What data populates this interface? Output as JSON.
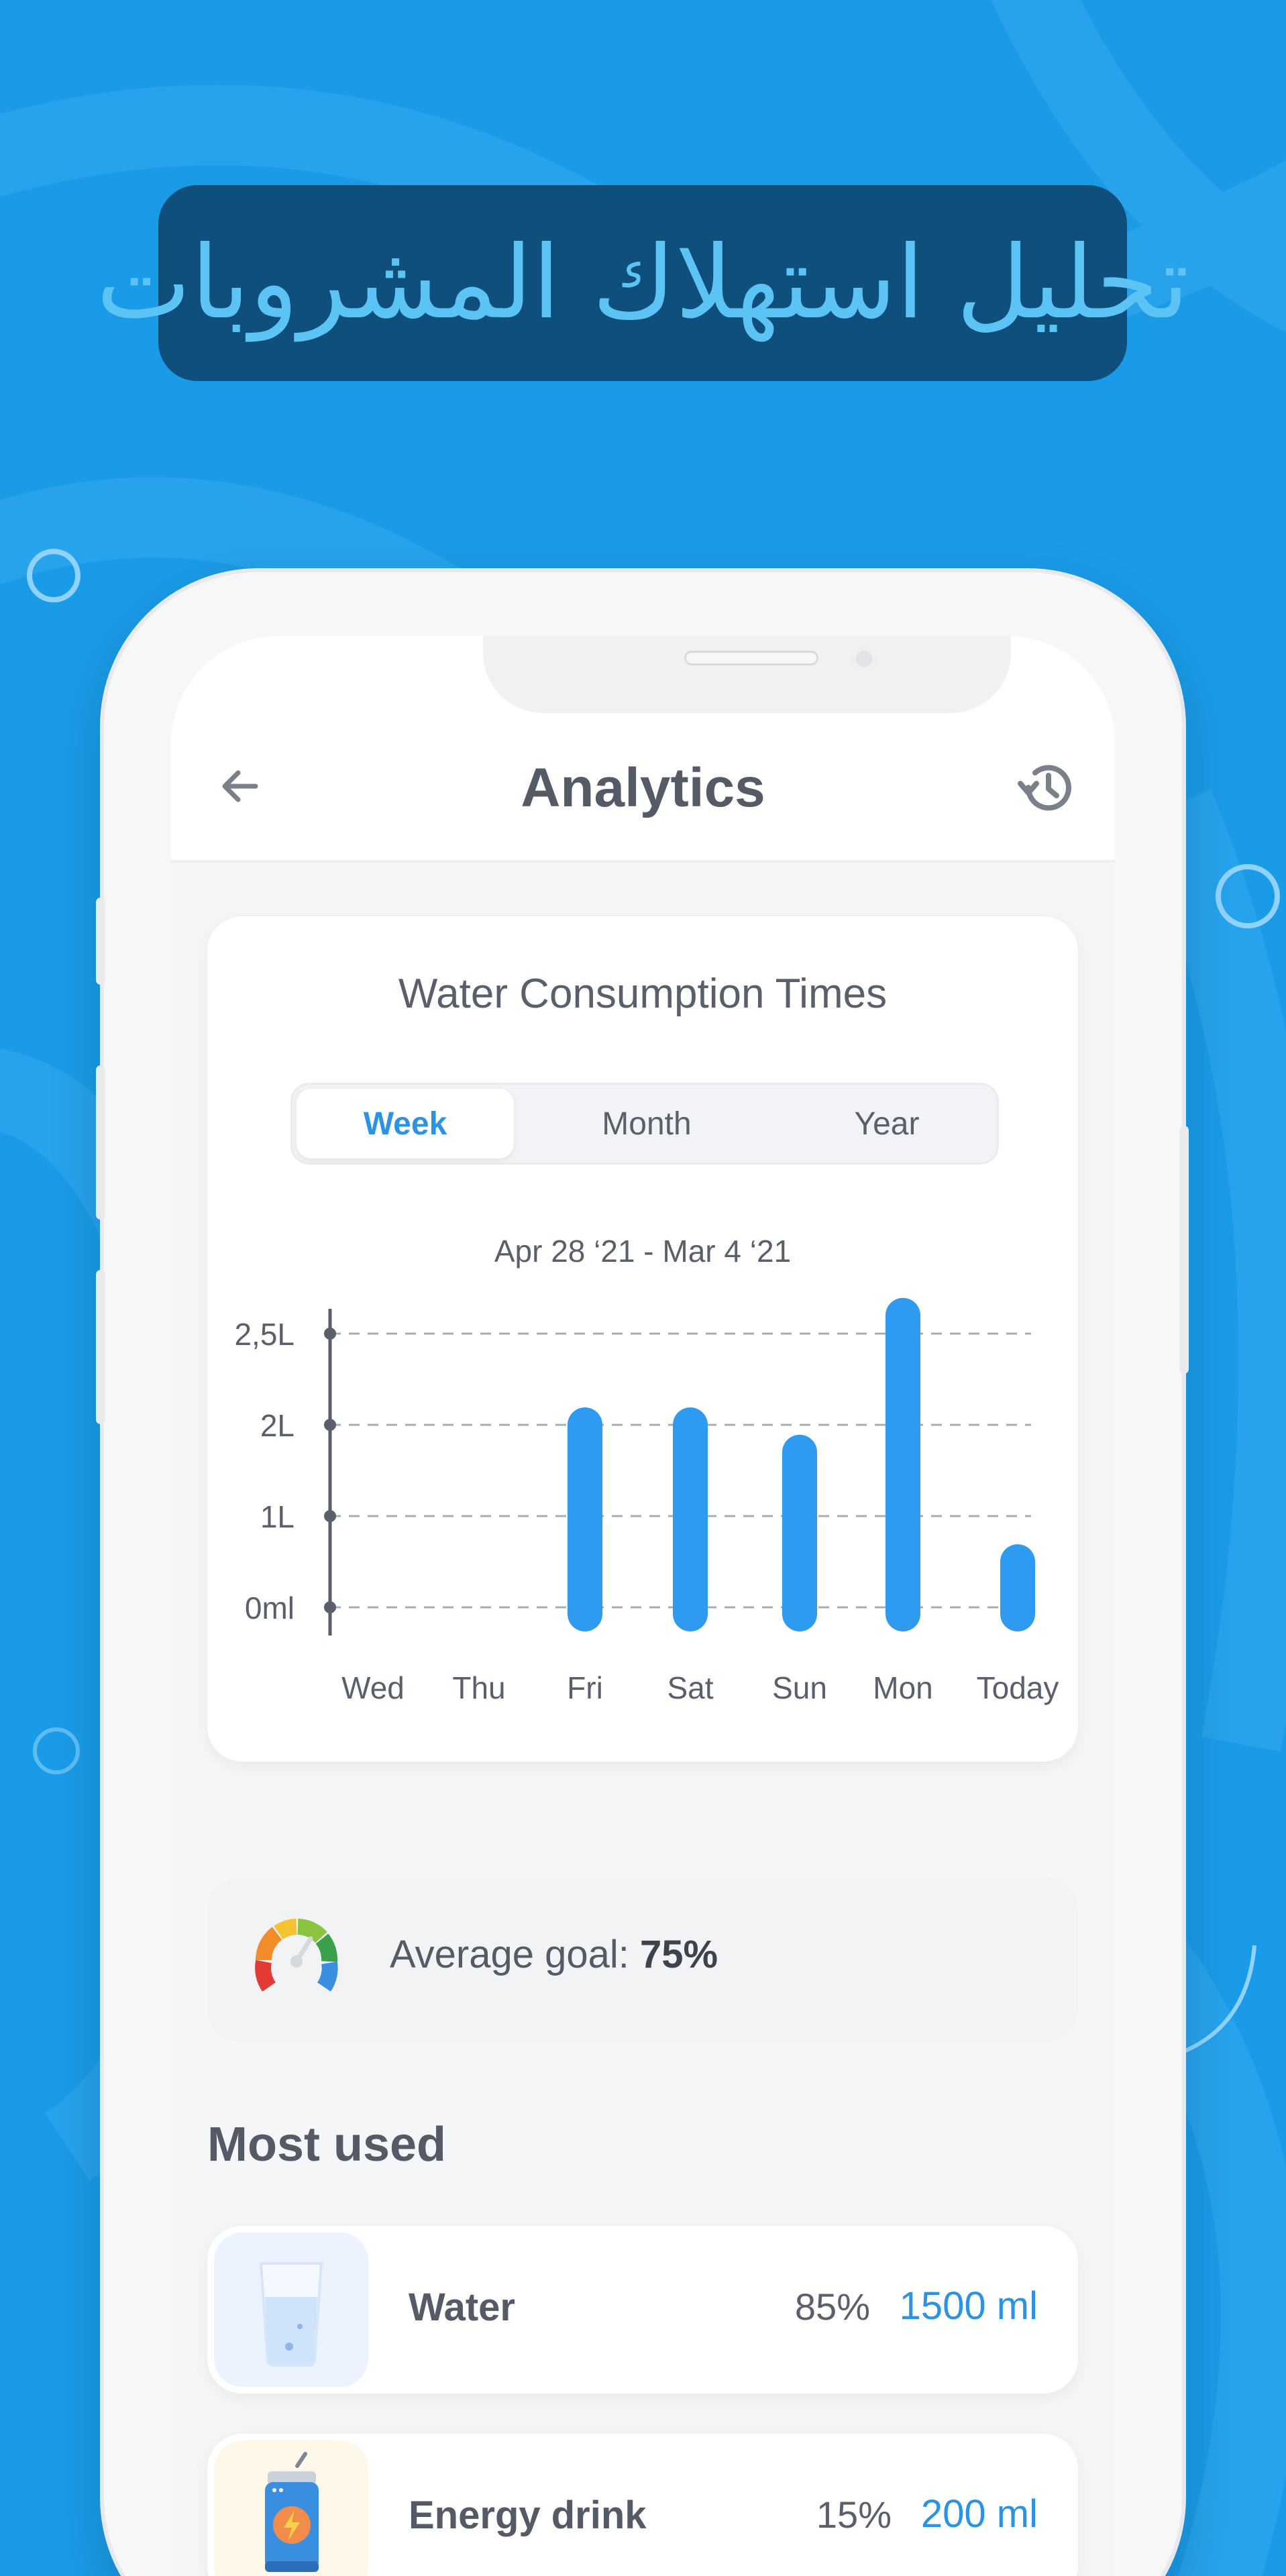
{
  "banner": {
    "text": "تحليل استهلاك المشروبات"
  },
  "appbar": {
    "title": "Analytics",
    "back_icon": "arrow-left-icon",
    "history_icon": "history-icon"
  },
  "consumption": {
    "title": "Water Consumption Times",
    "tabs": [
      {
        "label": "Week",
        "active": true
      },
      {
        "label": "Month",
        "active": false
      },
      {
        "label": "Year",
        "active": false
      }
    ],
    "date_range": "Apr 28 ‘21 - Mar 4 ‘21"
  },
  "chart_data": {
    "type": "bar",
    "categories": [
      "Wed",
      "Thu",
      "Fri",
      "Sat",
      "Sun",
      "Mon",
      "Today"
    ],
    "values": [
      0,
      0,
      2.0,
      2.0,
      1.7,
      2.6,
      0.5
    ],
    "y_tick_labels": [
      "0ml",
      "1L",
      "2L",
      "2,5L"
    ],
    "ylim": [
      0,
      3
    ],
    "grid": "dashed",
    "bar_color": "#2e9bf0"
  },
  "goal": {
    "label": "Average goal: ",
    "value": "75%",
    "icon": "gauge-icon"
  },
  "most_used": {
    "title": "Most used",
    "items": [
      {
        "name": "Water",
        "percent": "85%",
        "amount": "1500 ml",
        "icon": "water-glass-icon",
        "thumb_color": "#eaf3ff"
      },
      {
        "name": "Energy drink",
        "percent": "15%",
        "amount": "200 ml",
        "icon": "energy-drink-can-icon",
        "thumb_color": "#fdf8e8"
      }
    ]
  },
  "colors": {
    "accent": "#2a93e4",
    "background": "#1a9be8",
    "banner": "#0e4f7c"
  }
}
